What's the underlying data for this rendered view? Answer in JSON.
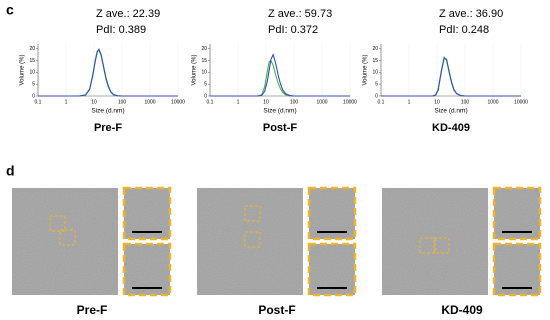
{
  "panels": {
    "c": "c",
    "d": "d"
  },
  "chart_data": [
    {
      "type": "line",
      "annotations": [
        "Z ave.: 22.39",
        "PdI: 0.389"
      ],
      "y_label": "Volume (%)",
      "x_label": "Size (d.nm)",
      "caption": "Pre-F",
      "xscale": "log",
      "xlim": [
        0.1,
        10000
      ],
      "xticks": [
        0.1,
        1,
        10,
        100,
        1000,
        10000
      ],
      "ylim": [
        0,
        22
      ],
      "yticks": [
        0,
        5,
        10,
        15,
        20
      ],
      "grid": true,
      "x": [
        0.1,
        3,
        5,
        7,
        9,
        11,
        13,
        15,
        18,
        22,
        27,
        33,
        40,
        50,
        70,
        100,
        10000
      ],
      "series": [
        {
          "color": "#4caf50",
          "values": [
            0,
            0,
            0.5,
            3,
            9,
            15,
            19,
            19.5,
            17,
            12,
            7,
            3.5,
            1.5,
            0.5,
            0.1,
            0,
            0
          ]
        },
        {
          "color": "#2f4fb0",
          "values": [
            0,
            0,
            0.4,
            2.8,
            8.5,
            14.5,
            18.5,
            19.8,
            17.5,
            12.5,
            7.5,
            4,
            1.8,
            0.6,
            0.1,
            0,
            0
          ]
        }
      ]
    },
    {
      "type": "line",
      "annotations": [
        "Z ave.: 59.73",
        "PdI: 0.372"
      ],
      "y_label": "Volume (%)",
      "x_label": "Size (d.nm)",
      "caption": "Post-F",
      "xscale": "log",
      "xlim": [
        0.1,
        10000
      ],
      "xticks": [
        0.1,
        1,
        10,
        100,
        1000,
        10000
      ],
      "ylim": [
        0,
        22
      ],
      "yticks": [
        0,
        5,
        10,
        15,
        20
      ],
      "grid": true,
      "x": [
        0.1,
        3,
        5,
        7,
        9,
        11,
        13,
        15,
        18,
        22,
        27,
        33,
        40,
        50,
        70,
        100,
        10000
      ],
      "series": [
        {
          "color": "#4caf50",
          "values": [
            0,
            0,
            0,
            0.5,
            4,
            10,
            14.5,
            15,
            13,
            9,
            5.5,
            3,
            1.5,
            0.5,
            0.1,
            0,
            0
          ]
        },
        {
          "color": "#2f4fb0",
          "values": [
            0,
            0,
            0,
            0.2,
            2,
            6,
            11,
            15.5,
            17.5,
            14,
            9,
            5,
            2.5,
            1,
            0.2,
            0,
            0
          ]
        }
      ]
    },
    {
      "type": "line",
      "annotations": [
        "Z ave.: 36.90",
        "PdI: 0.248"
      ],
      "y_label": "Volume (%)",
      "x_label": "Size (d.nm)",
      "caption": "KD-409",
      "xscale": "log",
      "xlim": [
        0.1,
        10000
      ],
      "xticks": [
        0.1,
        1,
        10,
        100,
        1000,
        10000
      ],
      "ylim": [
        0,
        22
      ],
      "yticks": [
        0,
        5,
        10,
        15,
        20
      ],
      "grid": true,
      "x": [
        0.1,
        3,
        5,
        7,
        9,
        11,
        13,
        15,
        18,
        22,
        27,
        33,
        40,
        50,
        70,
        100,
        10000
      ],
      "series": [
        {
          "color": "#4caf50",
          "values": [
            0,
            0,
            0,
            0,
            0.5,
            3,
            8,
            12,
            16.5,
            15,
            10,
            5.5,
            2.5,
            1,
            0.2,
            0,
            0
          ]
        },
        {
          "color": "#2f4fb0",
          "values": [
            0,
            0,
            0,
            0,
            0.4,
            2.5,
            7.5,
            11.5,
            16,
            15.5,
            10.5,
            6,
            2.8,
            1.1,
            0.2,
            0,
            0
          ]
        }
      ]
    }
  ],
  "micrographs": [
    {
      "caption": "Pre-F"
    },
    {
      "caption": "Post-F"
    },
    {
      "caption": "KD-409"
    }
  ]
}
